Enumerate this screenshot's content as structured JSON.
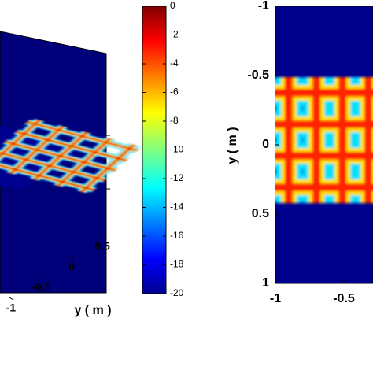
{
  "chart_data": [
    {
      "type": "surface3d",
      "axis_label": "y ( m )",
      "yticks": [
        -1,
        -0.5,
        0,
        0.5
      ]
    },
    {
      "type": "colorbar",
      "ylim": [
        -20,
        0
      ],
      "yticks": [
        0,
        -2,
        -4,
        -6,
        -8,
        -10,
        -12,
        -14,
        -16,
        -18,
        -20
      ]
    },
    {
      "type": "heatmap",
      "ylabel": "y ( m )",
      "xlim": [
        -1,
        1
      ],
      "xticks": [
        -1,
        -0.5
      ],
      "ylim": [
        -1,
        1
      ],
      "yticks": [
        -1,
        -0.5,
        0,
        0.5,
        1
      ],
      "y_inverted": true
    }
  ]
}
